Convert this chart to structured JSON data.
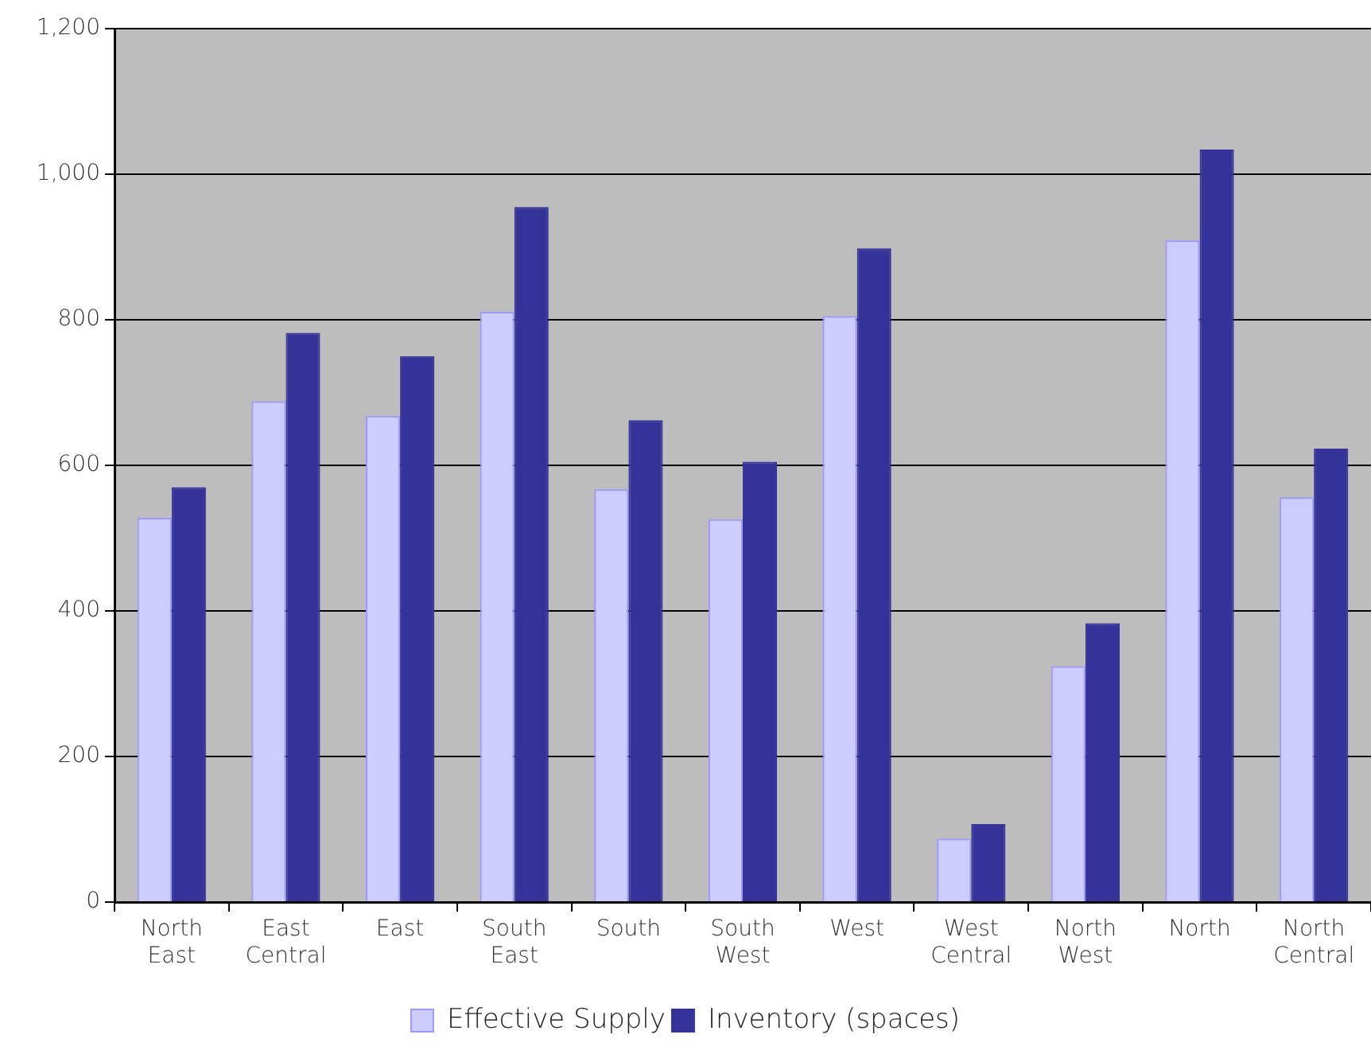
{
  "chart_data": {
    "type": "bar",
    "categories": [
      "North East",
      "East Central",
      "East",
      "South East",
      "South",
      "South West",
      "West",
      "West Central",
      "North West",
      "North",
      "North Central"
    ],
    "series": [
      {
        "name": "Effective Supply",
        "color": "#ccccff",
        "values": [
          528,
          688,
          668,
          811,
          567,
          526,
          805,
          87,
          324,
          909,
          556
        ]
      },
      {
        "name": "Inventory (spaces)",
        "color": "#333399",
        "values": [
          570,
          782,
          750,
          955,
          662,
          605,
          898,
          107,
          383,
          1034,
          623
        ]
      }
    ],
    "ylim": [
      0,
      1200
    ],
    "yticks": [
      0,
      200,
      400,
      600,
      800,
      {
        "value": 1000,
        "label": "1,000"
      },
      {
        "value": 1200,
        "label": "1,200"
      }
    ],
    "grid": "y",
    "legend": "bottom"
  }
}
